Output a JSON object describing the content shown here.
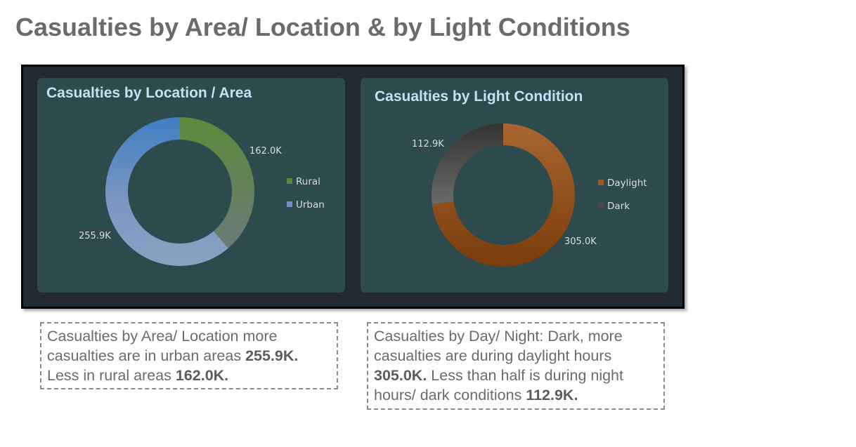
{
  "page_title": "Casualties by Area/ Location & by Light Conditions",
  "chart_data": [
    {
      "type": "pie",
      "title": "Casualties by Location / Area",
      "categories": [
        "Rural",
        "Urban"
      ],
      "values": [
        162.0,
        255.9
      ],
      "value_labels": [
        "162.0K",
        "255.9K"
      ],
      "unit": "K",
      "legend_position": "right",
      "colors": [
        "#5b8a3a",
        "#6f8fc4"
      ]
    },
    {
      "type": "pie",
      "title": "Casualties by Light Condition",
      "categories": [
        "Daylight",
        "Dark"
      ],
      "values": [
        305.0,
        112.9
      ],
      "value_labels": [
        "305.0K",
        "112.9K"
      ],
      "unit": "K",
      "legend_position": "right",
      "colors": [
        "#a25a1c",
        "#4a4a4a"
      ]
    }
  ],
  "notes": {
    "left": {
      "text1": "Casualties by Area/ Location more casualties are in urban areas ",
      "bold1": "255.9K.",
      "text2": " Less in rural areas ",
      "bold2": "162.0K."
    },
    "right": {
      "text1": "Casualties by Day/ Night: Dark, more casualties are during daylight hours ",
      "bold1": "305.0K.",
      "text2": " Less than half is during night hours/ dark conditions ",
      "bold2": "112.9K."
    }
  }
}
